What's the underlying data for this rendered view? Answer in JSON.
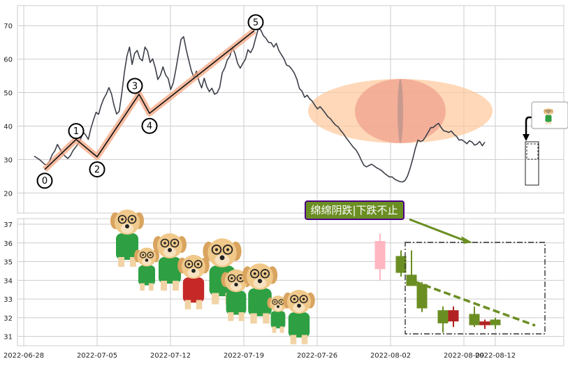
{
  "chart_data": [
    {
      "type": "line",
      "title": "",
      "xlabel": "",
      "ylabel": "",
      "ylim": [
        14,
        76
      ],
      "yticks": [
        20,
        30,
        40,
        50,
        60,
        70
      ],
      "grid": true,
      "line_color": "#3b3f48",
      "x_start": "2022-06-29",
      "x_end": "2022-08-11",
      "series": [
        {
          "values": [
            31.0,
            30.5,
            30.0,
            29.3,
            28.6,
            28.4,
            29.6,
            31.5,
            32.6,
            34.5,
            33.1,
            31.8,
            31.0,
            30.3,
            31.1,
            32.6,
            33.6,
            34.7,
            36.0,
            38.2,
            37.3,
            36.0,
            39.3,
            41.8,
            44.1,
            43.5,
            46.2,
            48.2,
            49.6,
            51.5,
            49.6,
            46.1,
            43.6,
            44.4,
            49.7,
            56.0,
            60.9,
            63.6,
            58.4,
            61.7,
            62.6,
            60.2,
            59.5,
            63.6,
            62.4,
            59.0,
            60.1,
            57.5,
            53.9,
            55.2,
            57.7,
            55.3,
            54.2,
            50.9,
            52.9,
            56.9,
            61.4,
            65.9,
            66.7,
            62.9,
            59.7,
            56.6,
            54.5,
            56.4,
            53.3,
            51.4,
            54.3,
            51.8,
            50.3,
            51.3,
            49.5,
            49.9,
            51.5,
            55.9,
            57.4,
            59.8,
            60.9,
            63.5,
            61.6,
            58.7,
            57.3,
            58.7,
            59.9,
            62.8,
            61.9,
            63.4,
            66.3,
            69.1,
            68.7,
            67.0,
            66.2,
            65.0,
            64.9,
            63.6,
            64.7,
            62.6,
            61.3,
            60.1,
            58.2,
            57.9,
            57.0,
            55.8,
            54.0,
            51.2,
            50.4,
            48.6,
            49.2,
            48.1,
            47.4,
            46.2,
            45.1,
            45.8,
            44.9,
            43.9,
            42.8,
            42.2,
            41.2,
            40.3,
            39.8,
            38.7,
            37.8,
            36.6,
            35.6,
            34.6,
            33.6,
            32.8,
            31.5,
            29.8,
            28.3,
            27.8,
            28.2,
            28.6,
            28.1,
            27.5,
            27.1,
            26.6,
            25.9,
            25.3,
            24.8,
            24.8,
            24.1,
            23.7,
            23.4,
            23.3,
            23.7,
            25.1,
            27.4,
            30.2,
            33.3,
            35.8,
            35.4,
            35.7,
            36.8,
            38.2,
            39.5,
            39.6,
            40.3,
            40.8,
            39.6,
            38.6,
            38.4,
            38.1,
            38.5,
            37.5,
            36.9,
            35.8,
            35.9,
            35.4,
            34.7,
            35.6,
            35.2,
            34.3,
            34.6,
            35.4,
            34.1,
            35.2
          ]
        }
      ],
      "wave_points": [
        {
          "label": "0",
          "date": "2022-06-30",
          "value": 27.0
        },
        {
          "label": "1",
          "date": "2022-07-03",
          "value": 36.0
        },
        {
          "label": "2",
          "date": "2022-07-05",
          "value": 30.8
        },
        {
          "label": "3",
          "date": "2022-07-09",
          "value": 49.5
        },
        {
          "label": "4",
          "date": "2022-07-10",
          "value": 43.8
        },
        {
          "label": "5",
          "date": "2022-07-20",
          "value": 68.5
        }
      ]
    },
    {
      "type": "candlestick",
      "title": "",
      "ylim": [
        30.5,
        37.3
      ],
      "yticks": [
        31,
        32,
        33,
        34,
        35,
        36,
        37
      ],
      "xticks": [
        "2022-06-28",
        "2022-07-05",
        "2022-07-12",
        "2022-07-19",
        "2022-07-26",
        "2022-08-02",
        "2022-08-09",
        "2022-08-12"
      ],
      "grid": true,
      "annotation": "绵绵阴跌|下跌不止",
      "colors": {
        "up": "#b22222",
        "down": "#6b8e23",
        "reference": "#ffb6c1",
        "label_bg": "#6b8e23",
        "label_border": "#4b0082"
      },
      "candles": [
        {
          "date": "2022-08-01",
          "open": 34.6,
          "high": 36.5,
          "low": 34.0,
          "close": 36.1,
          "kind": "reference"
        },
        {
          "date": "2022-08-03",
          "open": 35.3,
          "high": 35.6,
          "low": 34.2,
          "close": 34.4,
          "kind": "down"
        },
        {
          "date": "2022-08-04",
          "open": 34.3,
          "high": 35.6,
          "low": 33.7,
          "close": 33.7,
          "kind": "down"
        },
        {
          "date": "2022-08-05",
          "open": 33.8,
          "high": 33.9,
          "low": 32.3,
          "close": 32.5,
          "kind": "down"
        },
        {
          "date": "2022-08-07",
          "open": 32.4,
          "high": 32.6,
          "low": 31.2,
          "close": 31.7,
          "kind": "down"
        },
        {
          "date": "2022-08-08",
          "open": 31.8,
          "high": 32.6,
          "low": 31.5,
          "close": 32.4,
          "kind": "up"
        },
        {
          "date": "2022-08-10",
          "open": 32.2,
          "high": 32.6,
          "low": 31.5,
          "close": 31.6,
          "kind": "down"
        },
        {
          "date": "2022-08-11",
          "open": 31.6,
          "high": 31.9,
          "low": 31.4,
          "close": 31.8,
          "kind": "up"
        },
        {
          "date": "2022-08-12",
          "open": 31.9,
          "high": 32.0,
          "low": 31.4,
          "close": 31.6,
          "kind": "down"
        }
      ]
    }
  ]
}
